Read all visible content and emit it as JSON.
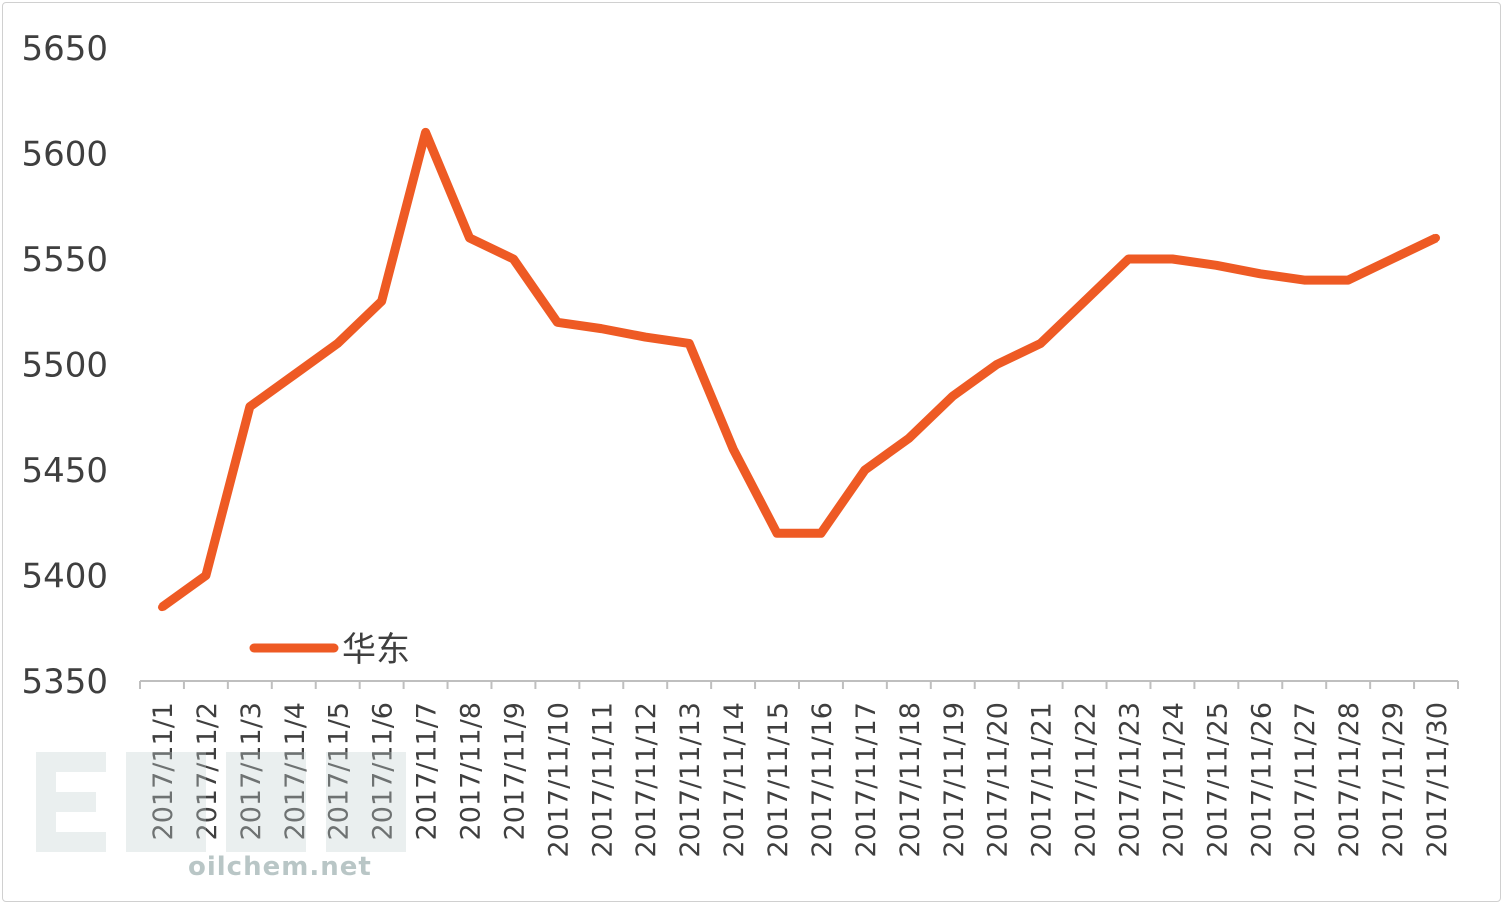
{
  "chart_data": {
    "type": "line",
    "title": "",
    "xlabel": "",
    "ylabel": "",
    "categories": [
      "2017/11/1",
      "2017/11/2",
      "2017/11/3",
      "2017/11/4",
      "2017/11/5",
      "2017/11/6",
      "2017/11/7",
      "2017/11/8",
      "2017/11/9",
      "2017/11/10",
      "2017/11/11",
      "2017/11/12",
      "2017/11/13",
      "2017/11/14",
      "2017/11/15",
      "2017/11/16",
      "2017/11/17",
      "2017/11/18",
      "2017/11/19",
      "2017/11/20",
      "2017/11/21",
      "2017/11/22",
      "2017/11/23",
      "2017/11/24",
      "2017/11/25",
      "2017/11/26",
      "2017/11/27",
      "2017/11/28",
      "2017/11/29",
      "2017/11/30"
    ],
    "series": [
      {
        "name": "华东",
        "color": "#ee5a24",
        "values": [
          5385,
          5400,
          5480,
          5495,
          5510,
          5530,
          5610,
          5560,
          5550,
          5520,
          5517,
          5513,
          5510,
          5460,
          5420,
          5420,
          5450,
          5465,
          5485,
          5500,
          5510,
          5530,
          5550,
          5550,
          5547,
          5543,
          5540,
          5540,
          5550,
          5560
        ]
      }
    ],
    "ylim": [
      5350,
      5650
    ],
    "yticks": [
      5350,
      5400,
      5450,
      5500,
      5550,
      5600,
      5650
    ],
    "grid": false,
    "legend": "bottom-left"
  },
  "watermark": {
    "text": "oilchem.net"
  }
}
